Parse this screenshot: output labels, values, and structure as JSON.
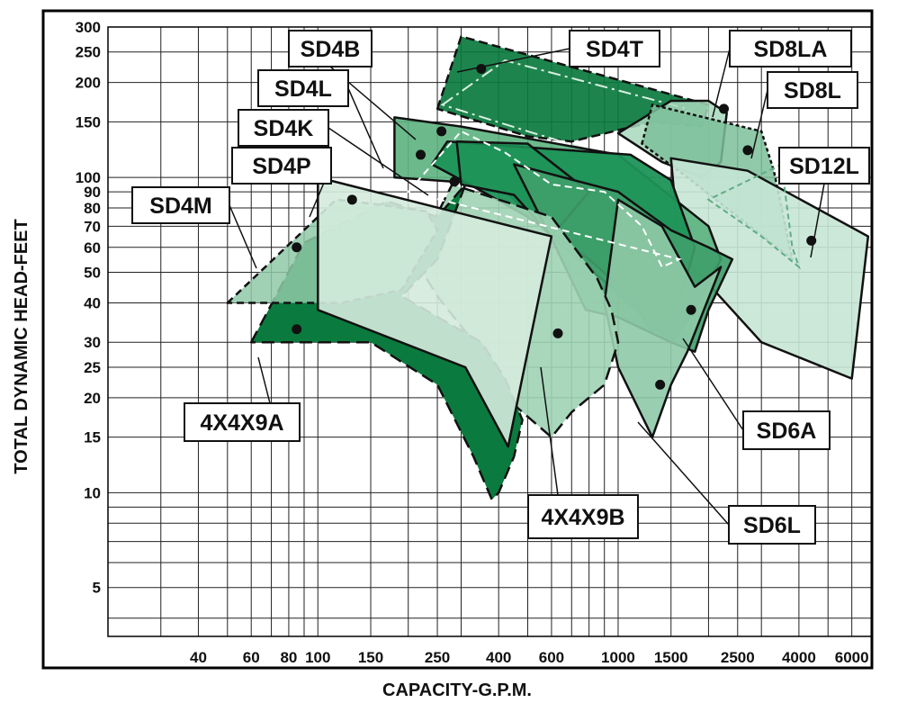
{
  "chart_data": {
    "type": "area",
    "title": "",
    "xlabel": "CAPACITY-G.P.M.",
    "ylabel": "TOTAL DYNAMIC HEAD-FEET",
    "x_scale": "log",
    "y_scale": "log",
    "xlim": [
      20,
      7000
    ],
    "ylim": [
      3.5,
      300
    ],
    "grid": true,
    "x_ticks": [
      40,
      60,
      80,
      100,
      150,
      250,
      400,
      600,
      1000,
      1500,
      2500,
      4000,
      6000
    ],
    "x_tick_labels": [
      "40",
      "60",
      "80",
      "100",
      "150",
      "250",
      "400",
      "600",
      "1000",
      "1500",
      "2500",
      "4000",
      "6000"
    ],
    "y_ticks": [
      5,
      10,
      15,
      20,
      25,
      30,
      40,
      50,
      60,
      70,
      80,
      90,
      100,
      150,
      200,
      250,
      300
    ],
    "y_tick_labels": [
      "5",
      "10",
      "15",
      "20",
      "25",
      "30",
      "40",
      "50",
      "60",
      "70",
      "80",
      "90",
      "100",
      "150",
      "200",
      "250",
      "300"
    ],
    "x_minor_grid": [
      30,
      50,
      70,
      90,
      200,
      300,
      500,
      700,
      800,
      900,
      2000,
      3000,
      5000,
      7000
    ],
    "y_minor_grid": [
      4,
      6,
      7,
      8,
      9
    ],
    "series": [
      {
        "name": "SD4T",
        "fill": "#0b7a3e",
        "opacity": 0.92,
        "dash": "10,5",
        "points": [
          [
            250,
            165
          ],
          [
            300,
            280
          ],
          [
            2000,
            170
          ],
          [
            1900,
            145
          ],
          [
            1300,
            150
          ],
          [
            700,
            130
          ],
          [
            500,
            135
          ]
        ]
      },
      {
        "name": "SD4T",
        "fill": "none",
        "stroke": "#d8efe0",
        "dash": "14,5,3,5",
        "points": [
          [
            260,
            170
          ],
          [
            420,
            235
          ],
          [
            1700,
            165
          ],
          [
            1500,
            95
          ],
          [
            1000,
            115
          ],
          [
            500,
            140
          ]
        ]
      },
      {
        "name": "SD8LA",
        "fill": "#a8d8bc",
        "opacity": 0.85,
        "dash": "none",
        "points": [
          [
            1000,
            138
          ],
          [
            1500,
            175
          ],
          [
            2000,
            175
          ],
          [
            2300,
            160
          ],
          [
            2200,
            112
          ],
          [
            1900,
            100
          ],
          [
            1400,
            112
          ]
        ]
      },
      {
        "name": "SD8L",
        "fill": "#7cc09a",
        "opacity": 0.85,
        "dash": "4,3",
        "points": [
          [
            1200,
            128
          ],
          [
            1300,
            170
          ],
          [
            3000,
            140
          ],
          [
            3300,
            105
          ],
          [
            3800,
            55
          ],
          [
            1700,
            100
          ]
        ]
      },
      {
        "name": "SD12L",
        "fill": "#c7e6d5",
        "opacity": 0.9,
        "dash": "none",
        "points": [
          [
            1500,
            115
          ],
          [
            2700,
            105
          ],
          [
            6800,
            65
          ],
          [
            6000,
            23
          ],
          [
            3000,
            30
          ],
          [
            1600,
            58
          ]
        ]
      },
      {
        "name": "SD4K",
        "fill": "#5cb37f",
        "opacity": 0.9,
        "dash": "none",
        "points": [
          [
            180,
            155
          ],
          [
            300,
            145
          ],
          [
            1000,
            118
          ],
          [
            2000,
            70
          ],
          [
            2200,
            55
          ],
          [
            1800,
            38
          ],
          [
            1500,
            30
          ],
          [
            1000,
            43
          ],
          [
            600,
            65
          ],
          [
            400,
            95
          ],
          [
            280,
            97
          ],
          [
            180,
            100
          ]
        ]
      },
      {
        "name": "SD4L",
        "fill": "#1d9458",
        "opacity": 0.95,
        "dash": "none",
        "points": [
          [
            240,
            110
          ],
          [
            270,
            130
          ],
          [
            1100,
            118
          ],
          [
            1500,
            98
          ],
          [
            1800,
            60
          ],
          [
            1600,
            40
          ],
          [
            1300,
            32
          ],
          [
            1100,
            42
          ],
          [
            800,
            55
          ],
          [
            500,
            75
          ],
          [
            320,
            95
          ]
        ]
      },
      {
        "name": "SD4B",
        "fill": "#1d9458",
        "opacity": 0.85,
        "dash": "none",
        "points": [
          [
            290,
            130
          ],
          [
            500,
            128
          ],
          [
            800,
            90
          ],
          [
            600,
            65
          ],
          [
            450,
            88
          ],
          [
            300,
            95
          ]
        ]
      },
      {
        "name": "SD6A",
        "fill": "#3f9f6a",
        "opacity": 0.9,
        "dash": "none",
        "points": [
          [
            450,
            110
          ],
          [
            1000,
            90
          ],
          [
            1500,
            68
          ],
          [
            2000,
            60
          ],
          [
            2400,
            55
          ],
          [
            2000,
            38
          ],
          [
            1800,
            28
          ],
          [
            1500,
            30
          ],
          [
            1000,
            36
          ],
          [
            780,
            38
          ],
          [
            620,
            60
          ]
        ]
      },
      {
        "name": "SD6L",
        "fill": "#8fc9a7",
        "opacity": 0.9,
        "dash": "none",
        "points": [
          [
            1000,
            85
          ],
          [
            1400,
            70
          ],
          [
            1800,
            45
          ],
          [
            2200,
            52
          ],
          [
            1700,
            28
          ],
          [
            1500,
            22
          ],
          [
            1300,
            15
          ],
          [
            1000,
            25
          ],
          [
            900,
            40
          ]
        ]
      },
      {
        "name": "4X4X9B",
        "fill": "#9fd3b4",
        "opacity": 0.9,
        "dash": "14,7",
        "points": [
          [
            210,
            55
          ],
          [
            280,
            95
          ],
          [
            600,
            75
          ],
          [
            850,
            48
          ],
          [
            950,
            38
          ],
          [
            1000,
            30
          ],
          [
            900,
            22
          ],
          [
            700,
            18
          ],
          [
            600,
            15
          ],
          [
            450,
            19
          ],
          [
            350,
            28
          ],
          [
            250,
            42
          ]
        ]
      },
      {
        "name": "4X4X9A",
        "fill": "#0b7a3e",
        "opacity": 1.0,
        "dash": "14,7",
        "points": [
          [
            60,
            30
          ],
          [
            90,
            62
          ],
          [
            170,
            84
          ],
          [
            250,
            75
          ],
          [
            310,
            95
          ],
          [
            250,
            55
          ],
          [
            190,
            42
          ],
          [
            350,
            30
          ],
          [
            420,
            23
          ],
          [
            480,
            17
          ],
          [
            450,
            13
          ],
          [
            400,
            10
          ],
          [
            380,
            9.5
          ],
          [
            330,
            13
          ],
          [
            250,
            22
          ],
          [
            150,
            30
          ]
        ]
      },
      {
        "name": "SD4M",
        "fill": "#8fc9a7",
        "opacity": 0.85,
        "dash": "8,5",
        "points": [
          [
            50,
            40
          ],
          [
            115,
            85
          ],
          [
            160,
            82
          ],
          [
            230,
            78
          ],
          [
            250,
            68
          ],
          [
            190,
            44
          ],
          [
            120,
            40
          ],
          [
            80,
            40
          ]
        ]
      },
      {
        "name": "SD4P",
        "fill": "#d4ebdd",
        "opacity": 0.9,
        "dash": "none",
        "points": [
          [
            100,
            100
          ],
          [
            600,
            65
          ],
          [
            430,
            14
          ],
          [
            310,
            25
          ],
          [
            100,
            38
          ]
        ]
      },
      {
        "name": "SD4T",
        "fill": "none",
        "stroke": "#ffffff",
        "dash": "8,5",
        "points": [
          [
            200,
            90
          ],
          [
            300,
            140
          ],
          [
            420,
            120
          ],
          [
            600,
            95
          ],
          [
            900,
            90
          ],
          [
            1200,
            70
          ],
          [
            1400,
            52
          ],
          [
            1600,
            55
          ]
        ]
      },
      {
        "name": "SD12L",
        "fill": "none",
        "stroke": "#5fae83",
        "dash": "6,4",
        "points": [
          [
            2000,
            85
          ],
          [
            3000,
            65
          ],
          [
            4000,
            52
          ],
          [
            3800,
            60
          ],
          [
            3500,
            110
          ]
        ]
      }
    ],
    "points": [
      {
        "name": "SD4T",
        "x": 350,
        "y": 221
      },
      {
        "name": "SD8LA",
        "x": 2250,
        "y": 165
      },
      {
        "name": "SD8L",
        "x": 2700,
        "y": 122
      },
      {
        "name": "SD12L",
        "x": 4400,
        "y": 63
      },
      {
        "name": "SD4B",
        "x": 258,
        "y": 140
      },
      {
        "name": "SD4L",
        "x": 220,
        "y": 118
      },
      {
        "name": "SD4K",
        "x": 285,
        "y": 97
      },
      {
        "name": "SD4P",
        "x": 130,
        "y": 85
      },
      {
        "name": "SD4M",
        "x": 85,
        "y": 60
      },
      {
        "name": "4X4X9A",
        "x": 85,
        "y": 33
      },
      {
        "name": "4X4X9B",
        "x": 630,
        "y": 32
      },
      {
        "name": "SD6A",
        "x": 1750,
        "y": 38
      },
      {
        "name": "SD6L",
        "x": 1380,
        "y": 22
      }
    ],
    "annotations": [
      "SD4B",
      "SD4T",
      "SD8LA",
      "SD4L",
      "SD8L",
      "SD4K",
      "SD12L",
      "SD4P",
      "SD4M",
      "4X4X9A",
      "4X4X9B",
      "SD6A",
      "SD6L"
    ]
  }
}
